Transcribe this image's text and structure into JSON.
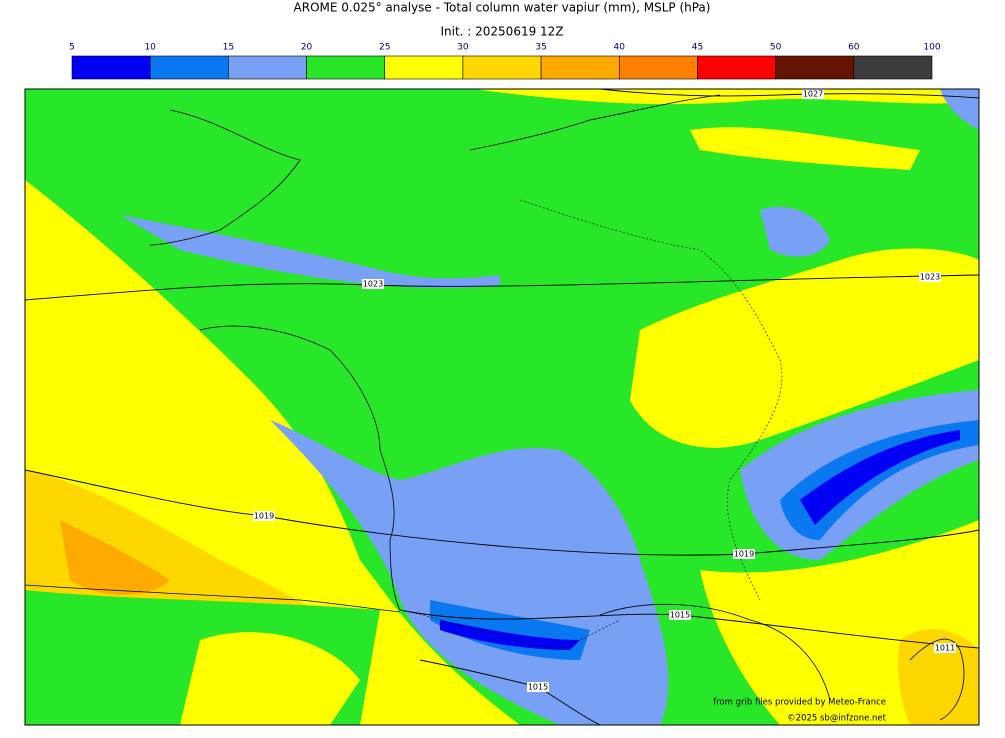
{
  "title": "AROME 0.025° analyse - Total column water vapiur (mm), MSLP (hPa)",
  "subtitle": "Init. : 20250619 12Z",
  "colorbar": {
    "ticks": [
      5,
      10,
      15,
      20,
      25,
      30,
      35,
      40,
      45,
      50,
      60,
      100
    ],
    "colors": [
      "#0000f5",
      "#0a78f0",
      "#78a0f5",
      "#28e628",
      "#ffff00",
      "#ffd700",
      "#ffaa00",
      "#ff8000",
      "#ff0000",
      "#641400",
      "#3c3c3c"
    ]
  },
  "isobar_labels": [
    "1027",
    "1023",
    "1023",
    "1019",
    "1019",
    "1015",
    "1015",
    "1011"
  ],
  "credits": [
    "from grib files provided by Meteo-France",
    "©2025 sb@infzone.net"
  ]
}
